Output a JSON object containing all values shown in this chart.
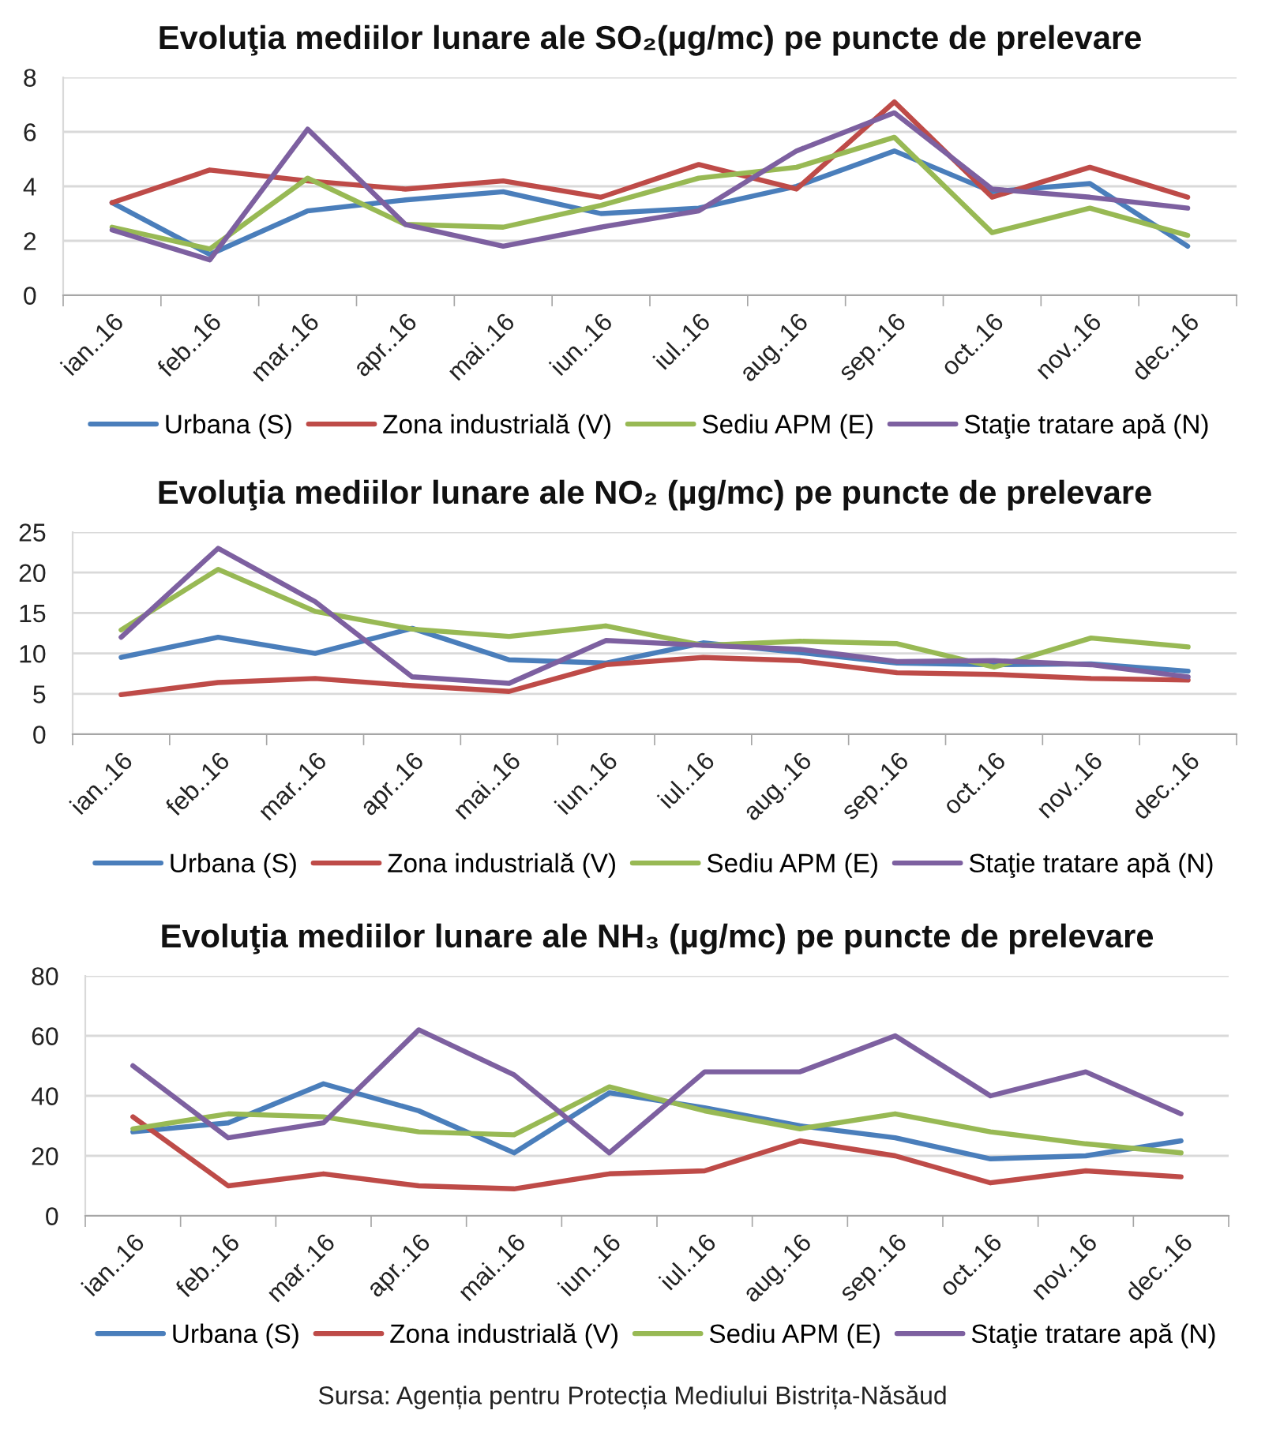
{
  "chart_data": [
    {
      "type": "line",
      "title": "Evoluţia mediilor lunare ale SO₂(µg/mc) pe puncte de prelevare",
      "categories": [
        "ian..16",
        "feb..16",
        "mar..16",
        "apr..16",
        "mai..16",
        "iun..16",
        "iul..16",
        "aug..16",
        "sep..16",
        "oct..16",
        "nov..16",
        "dec..16"
      ],
      "series": [
        {
          "name": "Urbana (S)",
          "color": "#4a7ebb",
          "values": [
            3.4,
            1.5,
            3.1,
            3.5,
            3.8,
            3.0,
            3.2,
            4.0,
            5.3,
            3.8,
            4.1,
            1.8
          ]
        },
        {
          "name": "Zona industrială (V)",
          "color": "#be4b48",
          "values": [
            3.4,
            4.6,
            4.2,
            3.9,
            4.2,
            3.6,
            4.8,
            3.9,
            7.1,
            3.6,
            4.7,
            3.6
          ]
        },
        {
          "name": "Sediu APM (E)",
          "color": "#98b954",
          "values": [
            2.5,
            1.7,
            4.3,
            2.6,
            2.5,
            3.3,
            4.3,
            4.7,
            5.8,
            2.3,
            3.2,
            2.2
          ]
        },
        {
          "name": "Staţie tratare apă (N)",
          "color": "#7d60a0",
          "values": [
            2.4,
            1.3,
            6.1,
            2.6,
            1.8,
            2.5,
            3.1,
            5.3,
            6.7,
            3.9,
            3.6,
            3.2
          ]
        }
      ],
      "ylim": [
        0,
        8
      ],
      "yticks": [
        0,
        2,
        4,
        6,
        8
      ],
      "grid": "y",
      "legend": "bottom"
    },
    {
      "type": "line",
      "title": "Evoluţia mediilor lunare ale NO₂ (µg/mc) pe puncte de prelevare",
      "categories": [
        "ian..16",
        "feb..16",
        "mar..16",
        "apr..16",
        "mai..16",
        "iun..16",
        "iul..16",
        "aug..16",
        "sep..16",
        "oct..16",
        "nov..16",
        "dec..16"
      ],
      "series": [
        {
          "name": "Urbana (S)",
          "color": "#4a7ebb",
          "values": [
            9.5,
            12.0,
            10.0,
            13.1,
            9.2,
            8.8,
            11.3,
            10.1,
            8.8,
            8.6,
            8.7,
            7.8
          ]
        },
        {
          "name": "Zona industrială (V)",
          "color": "#be4b48",
          "values": [
            4.9,
            6.4,
            6.9,
            6.0,
            5.3,
            8.6,
            9.5,
            9.1,
            7.6,
            7.4,
            6.9,
            6.7
          ]
        },
        {
          "name": "Sediu APM (E)",
          "color": "#98b954",
          "values": [
            12.9,
            20.4,
            15.2,
            13.0,
            12.1,
            13.4,
            11.0,
            11.5,
            11.2,
            8.3,
            11.9,
            10.8
          ]
        },
        {
          "name": "Staţie tratare apă (N)",
          "color": "#7d60a0",
          "values": [
            12.0,
            23.0,
            16.4,
            7.1,
            6.3,
            11.6,
            11.0,
            10.5,
            9.0,
            9.1,
            8.6,
            7.1
          ]
        }
      ],
      "ylim": [
        0,
        25
      ],
      "yticks": [
        0,
        5,
        10,
        15,
        20,
        25
      ],
      "grid": "y",
      "legend": "bottom"
    },
    {
      "type": "line",
      "title": "Evoluţia mediilor lunare ale NH₃ (µg/mc) pe puncte de prelevare",
      "categories": [
        "ian..16",
        "feb..16",
        "mar..16",
        "apr..16",
        "mai..16",
        "iun..16",
        "iul..16",
        "aug..16",
        "sep..16",
        "oct..16",
        "nov..16",
        "dec..16"
      ],
      "series": [
        {
          "name": "Urbana (S)",
          "color": "#4a7ebb",
          "values": [
            28,
            31,
            44,
            35,
            21,
            41,
            36,
            30,
            26,
            19,
            20,
            25
          ]
        },
        {
          "name": "Zona industrială (V)",
          "color": "#be4b48",
          "values": [
            33,
            10,
            14,
            10,
            9,
            14,
            15,
            25,
            20,
            11,
            15,
            13
          ]
        },
        {
          "name": "Sediu APM (E)",
          "color": "#98b954",
          "values": [
            29,
            34,
            33,
            28,
            27,
            43,
            35,
            29,
            34,
            28,
            24,
            21
          ]
        },
        {
          "name": "Staţie tratare apă (N)",
          "color": "#7d60a0",
          "values": [
            50,
            26,
            31,
            62,
            47,
            21,
            48,
            48,
            60,
            40,
            48,
            34
          ]
        }
      ],
      "ylim": [
        0,
        80
      ],
      "yticks": [
        0,
        20,
        40,
        60,
        80
      ],
      "grid": "y",
      "legend": "bottom",
      "annotations": [
        "Sursa: Agenția pentru Protecția Mediului Bistrița-Năsăud"
      ]
    }
  ]
}
